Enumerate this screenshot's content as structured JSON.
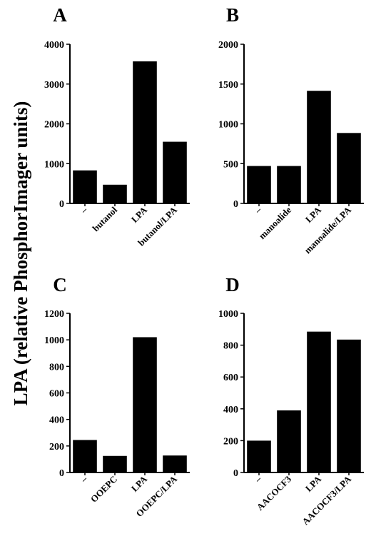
{
  "figure": {
    "ylabel": "LPA (relative PhosphorImager units)"
  },
  "chart_data": [
    {
      "panel": "A",
      "type": "bar",
      "categories": [
        "–",
        "butanol",
        "LPA",
        "butanol/LPA"
      ],
      "values": [
        830,
        470,
        3570,
        1550
      ],
      "ylim": [
        0,
        4000
      ],
      "yticks": [
        "0",
        "1000",
        "2000",
        "3000",
        "4000"
      ],
      "bar_color": "#000000"
    },
    {
      "panel": "B",
      "type": "bar",
      "categories": [
        "–",
        "manoalide",
        "LPA",
        "manoalide/LPA"
      ],
      "values": [
        470,
        470,
        1415,
        885
      ],
      "ylim": [
        0,
        2000
      ],
      "yticks": [
        "0",
        "500",
        "1000",
        "1500",
        "2000"
      ],
      "bar_color": "#000000"
    },
    {
      "panel": "C",
      "type": "bar",
      "categories": [
        "–",
        "OOEPC",
        "LPA",
        "OOEPC/LPA"
      ],
      "values": [
        245,
        125,
        1020,
        128
      ],
      "ylim": [
        0,
        1200
      ],
      "yticks": [
        "0",
        "200",
        "400",
        "600",
        "800",
        "1000",
        "1200"
      ],
      "bar_color": "#000000"
    },
    {
      "panel": "D",
      "type": "bar",
      "categories": [
        "–",
        "AACOCF3",
        "LPA",
        "AACOCF3/LPA"
      ],
      "values": [
        200,
        390,
        885,
        835
      ],
      "ylim": [
        0,
        1000
      ],
      "yticks": [
        "0",
        "200",
        "400",
        "600",
        "800",
        "1000"
      ],
      "bar_color": "#000000"
    }
  ]
}
